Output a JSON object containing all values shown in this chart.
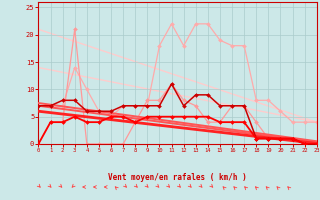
{
  "background_color": "#cce8e8",
  "grid_color": "#aacccc",
  "xlabel": "Vent moyen/en rafales ( km/h )",
  "x_ticks": [
    0,
    1,
    2,
    3,
    4,
    5,
    6,
    7,
    8,
    9,
    10,
    11,
    12,
    13,
    14,
    15,
    16,
    17,
    18,
    19,
    20,
    21,
    22,
    23
  ],
  "ylim": [
    0,
    26
  ],
  "yticks": [
    0,
    5,
    10,
    15,
    20,
    25
  ],
  "xlim": [
    0,
    23
  ],
  "lines": [
    {
      "x": [
        0,
        1,
        2,
        3,
        4,
        5,
        6,
        7,
        8,
        9,
        10,
        11,
        12,
        13,
        14,
        15,
        16,
        17,
        18,
        19,
        20,
        21,
        22,
        23
      ],
      "y": [
        7,
        7,
        7,
        14,
        10,
        6,
        5,
        7,
        7,
        7,
        18,
        22,
        18,
        22,
        22,
        19,
        18,
        18,
        8,
        8,
        6,
        4,
        4,
        4
      ],
      "color": "#ffaaaa",
      "lw": 0.9,
      "marker": "D",
      "ms": 2.0,
      "zorder": 2
    },
    {
      "x": [
        0,
        1,
        2,
        3,
        4,
        5,
        6,
        7,
        8,
        9,
        10,
        11,
        12,
        13,
        14,
        15,
        16,
        17,
        18,
        19,
        20,
        21,
        22,
        23
      ],
      "y": [
        0,
        4,
        4,
        21,
        0,
        0,
        0,
        0,
        4,
        8,
        8,
        11,
        8,
        7,
        4,
        4,
        7,
        7,
        4,
        1,
        1,
        1,
        0,
        0
      ],
      "color": "#ff9999",
      "lw": 0.9,
      "marker": "D",
      "ms": 2.0,
      "zorder": 2
    },
    {
      "x": [
        0,
        23
      ],
      "y": [
        21,
        4
      ],
      "color": "#ffcccc",
      "lw": 1.0,
      "marker": null,
      "ms": 0,
      "zorder": 1
    },
    {
      "x": [
        0,
        23
      ],
      "y": [
        14,
        4
      ],
      "color": "#ffcccc",
      "lw": 1.0,
      "marker": null,
      "ms": 0,
      "zorder": 1
    },
    {
      "x": [
        0,
        23
      ],
      "y": [
        7.5,
        0.5
      ],
      "color": "#ff5555",
      "lw": 1.4,
      "marker": null,
      "ms": 0,
      "zorder": 3
    },
    {
      "x": [
        0,
        23
      ],
      "y": [
        7.0,
        0.3
      ],
      "color": "#ff5555",
      "lw": 1.4,
      "marker": null,
      "ms": 0,
      "zorder": 3
    },
    {
      "x": [
        0,
        23
      ],
      "y": [
        6.0,
        0.1
      ],
      "color": "#ff2222",
      "lw": 2.0,
      "marker": null,
      "ms": 0,
      "zorder": 3
    },
    {
      "x": [
        0,
        1,
        2,
        3,
        4,
        5,
        6,
        7,
        8,
        9,
        10,
        11,
        12,
        13,
        14,
        15,
        16,
        17,
        18,
        19,
        20,
        21,
        22,
        23
      ],
      "y": [
        7,
        7,
        8,
        8,
        6,
        6,
        6,
        7,
        7,
        7,
        7,
        11,
        7,
        9,
        9,
        7,
        7,
        7,
        1,
        1,
        1,
        1,
        0,
        0
      ],
      "color": "#cc0000",
      "lw": 1.1,
      "marker": "D",
      "ms": 2.0,
      "zorder": 4
    },
    {
      "x": [
        0,
        1,
        2,
        3,
        4,
        5,
        6,
        7,
        8,
        9,
        10,
        11,
        12,
        13,
        14,
        15,
        16,
        17,
        18,
        19,
        20,
        21,
        22,
        23
      ],
      "y": [
        0,
        4,
        4,
        5,
        4,
        4,
        5,
        5,
        4,
        5,
        5,
        5,
        5,
        5,
        5,
        4,
        4,
        4,
        1,
        1,
        1,
        1,
        0,
        0
      ],
      "color": "#ff0000",
      "lw": 1.3,
      "marker": "D",
      "ms": 2.0,
      "zorder": 5
    }
  ],
  "arrow_angles_deg": [
    45,
    45,
    45,
    315,
    270,
    270,
    270,
    225,
    45,
    45,
    45,
    45,
    45,
    45,
    45,
    45,
    45,
    225,
    225,
    225,
    225,
    225,
    225,
    225
  ]
}
